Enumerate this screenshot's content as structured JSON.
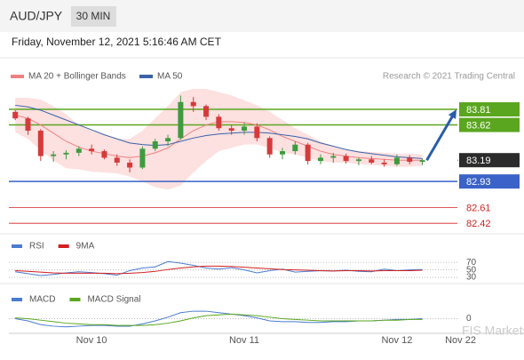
{
  "header": {
    "symbol": "AUD/JPY",
    "interval": "30 MIN"
  },
  "timestamp": "Friday, November 12, 2021 5:16:46 AM CET",
  "watermark": "FIS Markets",
  "chart_data": [
    {
      "type": "candlestick",
      "credit": "Research © 2021 Trading Central",
      "categories": [
        null,
        null,
        null,
        null,
        null,
        null,
        "Nov 10",
        null,
        null,
        null,
        null,
        null,
        null,
        null,
        null,
        null,
        null,
        null,
        "Nov 11",
        null,
        null,
        null,
        null,
        null,
        null,
        null,
        null,
        null,
        null,
        null,
        "Nov 12",
        null,
        null,
        null,
        null,
        "Nov 22",
        null,
        null,
        null,
        null
      ],
      "open": [
        83.78,
        83.7,
        83.55,
        83.24,
        83.26,
        83.28,
        83.33,
        83.3,
        83.22,
        83.16,
        83.1,
        83.33,
        83.42,
        83.46,
        83.9,
        83.85,
        83.72,
        83.58,
        83.55,
        83.6,
        83.46,
        83.26,
        83.3,
        83.38,
        83.18,
        83.22,
        83.24,
        83.18,
        83.2,
        83.16,
        83.14,
        83.22,
        83.17,
        null,
        null,
        null,
        null,
        null,
        null,
        null
      ],
      "high": [
        83.8,
        83.72,
        83.57,
        83.3,
        83.31,
        83.36,
        83.38,
        83.32,
        83.26,
        83.2,
        83.36,
        83.45,
        83.5,
        83.98,
        83.96,
        83.87,
        83.75,
        83.62,
        83.65,
        83.64,
        83.48,
        83.34,
        83.42,
        83.4,
        83.26,
        83.28,
        83.27,
        83.22,
        83.24,
        83.2,
        83.26,
        83.25,
        83.21,
        null,
        null,
        null,
        null,
        null,
        null,
        null
      ],
      "low": [
        83.68,
        83.5,
        83.18,
        83.17,
        83.2,
        83.24,
        83.26,
        83.2,
        83.12,
        83.04,
        83.08,
        83.3,
        83.36,
        83.44,
        83.78,
        83.68,
        83.55,
        83.5,
        83.5,
        83.42,
        83.22,
        83.2,
        83.26,
        83.14,
        83.14,
        83.16,
        83.15,
        83.13,
        83.14,
        83.11,
        83.12,
        83.14,
        83.13,
        null,
        null,
        null,
        null,
        null,
        null,
        null
      ],
      "close": [
        83.7,
        83.55,
        83.24,
        83.26,
        83.28,
        83.33,
        83.3,
        83.22,
        83.16,
        83.1,
        83.33,
        83.42,
        83.46,
        83.9,
        83.85,
        83.72,
        83.58,
        83.55,
        83.6,
        83.46,
        83.26,
        83.3,
        83.38,
        83.18,
        83.22,
        83.24,
        83.18,
        83.2,
        83.16,
        83.14,
        83.22,
        83.17,
        83.19,
        null,
        null,
        null,
        null,
        null,
        null,
        null
      ],
      "up_color": "#3f9b3f",
      "down_color": "#d63a3a",
      "indicators": [
        {
          "name": "MA 20 + Bollinger Bands",
          "color": "#f08080",
          "band_color": "#fde0e0",
          "values": [
            83.74,
            83.7,
            83.62,
            83.52,
            83.42,
            83.35,
            83.3,
            83.27,
            83.24,
            83.22,
            83.24,
            83.28,
            83.34,
            83.45,
            83.55,
            83.62,
            83.66,
            83.66,
            83.65,
            83.62,
            83.56,
            83.48,
            83.42,
            83.36,
            83.3,
            83.26,
            83.24,
            83.22,
            83.21,
            83.2,
            83.19,
            83.19,
            83.19,
            null,
            null,
            null,
            null,
            null,
            null,
            null
          ],
          "upper": [
            83.95,
            83.95,
            83.93,
            83.85,
            83.75,
            83.62,
            83.55,
            83.5,
            83.45,
            83.45,
            83.55,
            83.7,
            83.85,
            84.02,
            84.06,
            84.06,
            84.02,
            83.98,
            83.92,
            83.86,
            83.78,
            83.68,
            83.58,
            83.5,
            83.42,
            83.36,
            83.32,
            83.3,
            83.29,
            83.28,
            83.27,
            83.27,
            83.26,
            null,
            null,
            null,
            null,
            null,
            null,
            null
          ],
          "lower": [
            83.53,
            83.45,
            83.31,
            83.19,
            83.09,
            83.08,
            83.05,
            83.04,
            83.03,
            82.99,
            82.93,
            82.86,
            82.83,
            82.88,
            83.04,
            83.18,
            83.3,
            83.34,
            83.38,
            83.38,
            83.34,
            83.28,
            83.26,
            83.22,
            83.18,
            83.16,
            83.16,
            83.14,
            83.13,
            83.12,
            83.11,
            83.11,
            83.12,
            null,
            null,
            null,
            null,
            null,
            null,
            null
          ]
        },
        {
          "name": "MA 50",
          "color": "#3a62a8",
          "values": [
            83.86,
            83.84,
            83.8,
            83.74,
            83.68,
            83.62,
            83.56,
            83.5,
            83.45,
            83.4,
            83.38,
            83.37,
            83.38,
            83.42,
            83.46,
            83.49,
            83.51,
            83.52,
            83.53,
            83.53,
            83.52,
            83.5,
            83.48,
            83.45,
            83.4,
            83.36,
            83.32,
            83.29,
            83.27,
            83.25,
            83.23,
            83.22,
            83.21,
            null,
            null,
            null,
            null,
            null,
            null,
            null
          ]
        }
      ],
      "levels": [
        {
          "value": 83.81,
          "color": "#5aa61e",
          "style": "box",
          "line": "solid"
        },
        {
          "value": 83.62,
          "color": "#5aa61e",
          "style": "box",
          "line": "solid"
        },
        {
          "value": 83.19,
          "color": "#2b2b2b",
          "style": "box",
          "line": "dotted"
        },
        {
          "value": 82.93,
          "color": "#3a62c8",
          "style": "box",
          "line": "solid"
        },
        {
          "value": 82.61,
          "color": "#d42020",
          "style": "text",
          "line": "thin"
        },
        {
          "value": 82.42,
          "color": "#d42020",
          "style": "text",
          "line": "thin"
        }
      ],
      "forecast_color": "#2a5caa",
      "ylim": [
        82.27,
        84.06
      ]
    },
    {
      "type": "line",
      "series": [
        {
          "name": "RSI",
          "color": "#4a7bd0",
          "values": [
            45,
            40,
            35,
            38,
            42,
            45,
            43,
            40,
            36,
            48,
            55,
            58,
            72,
            68,
            62,
            55,
            52,
            56,
            50,
            42,
            48,
            52,
            44,
            46,
            48,
            47,
            49,
            46,
            45,
            52,
            48,
            50,
            51,
            null,
            null,
            null,
            null,
            null,
            null,
            null
          ]
        },
        {
          "name": "9MA",
          "color": "#d42020",
          "values": [
            48,
            46,
            44,
            42,
            41,
            41,
            41,
            41,
            40,
            41,
            43,
            46,
            51,
            55,
            58,
            60,
            60,
            59,
            57,
            55,
            53,
            51,
            50,
            49,
            48,
            47,
            48,
            48,
            47,
            48,
            48,
            48,
            49,
            null,
            null,
            null,
            null,
            null,
            null,
            null
          ]
        }
      ],
      "ylim": [
        16,
        94
      ],
      "yticks": [
        30,
        50,
        70
      ],
      "grid": true
    },
    {
      "type": "line",
      "series": [
        {
          "name": "MACD",
          "color": "#4a7bd0",
          "values": [
            0,
            -0.03,
            -0.08,
            -0.1,
            -0.11,
            -0.1,
            -0.09,
            -0.09,
            -0.1,
            -0.1,
            -0.07,
            -0.03,
            0.02,
            0.08,
            0.1,
            0.1,
            0.08,
            0.06,
            0.04,
            0.01,
            -0.03,
            -0.04,
            -0.04,
            -0.05,
            -0.05,
            -0.04,
            -0.04,
            -0.03,
            -0.03,
            -0.02,
            -0.01,
            -0.01,
            0,
            null,
            null,
            null,
            null,
            null,
            null,
            null
          ]
        },
        {
          "name": "MACD Signal",
          "color": "#5aa61e",
          "values": [
            0.01,
            0,
            -0.02,
            -0.04,
            -0.06,
            -0.07,
            -0.08,
            -0.08,
            -0.09,
            -0.09,
            -0.09,
            -0.08,
            -0.06,
            -0.03,
            0.01,
            0.04,
            0.05,
            0.06,
            0.05,
            0.04,
            0.02,
            0,
            -0.01,
            -0.02,
            -0.03,
            -0.03,
            -0.03,
            -0.03,
            -0.03,
            -0.02,
            -0.02,
            -0.01,
            -0.01,
            null,
            null,
            null,
            null,
            null,
            null,
            null
          ]
        }
      ],
      "ylim": [
        -0.16,
        0.16
      ],
      "yticks": [
        0
      ],
      "grid": true
    }
  ]
}
